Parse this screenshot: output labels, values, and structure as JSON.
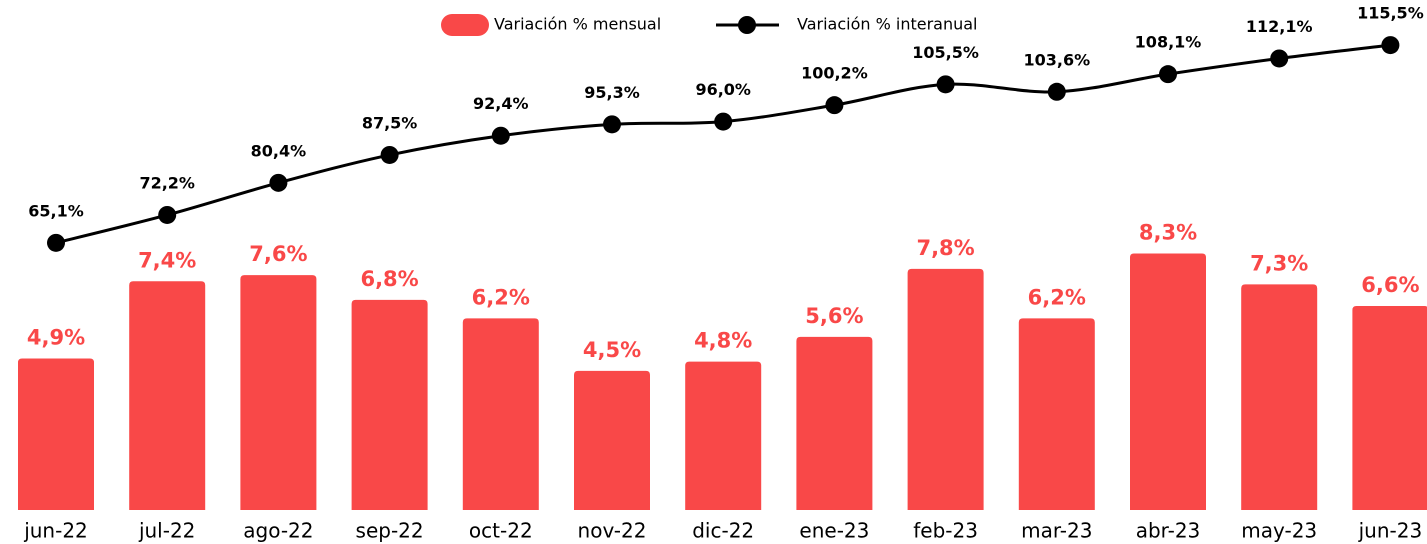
{
  "chart_data": {
    "type": "bar",
    "categories": [
      "jun-22",
      "jul-22",
      "ago-22",
      "sep-22",
      "oct-22",
      "nov-22",
      "dic-22",
      "ene-23",
      "feb-23",
      "mar-23",
      "abr-23",
      "may-23",
      "jun-23"
    ],
    "series": [
      {
        "name": "Variación % mensual",
        "color": "#f94848",
        "values": [
          4.9,
          7.4,
          7.6,
          6.8,
          6.2,
          4.5,
          4.8,
          5.6,
          7.8,
          6.2,
          8.3,
          7.3,
          6.6
        ],
        "value_labels": [
          "4,9%",
          "7,4%",
          "7,6%",
          "6,8%",
          "6,2%",
          "4,5%",
          "4,8%",
          "5,6%",
          "7,8%",
          "6,2%",
          "8,3%",
          "7,3%",
          "6,6%"
        ]
      },
      {
        "name": "Variación % interanual",
        "color": "#000000",
        "type": "line",
        "axis": "y2",
        "values": [
          65.1,
          72.2,
          80.4,
          87.5,
          92.4,
          95.3,
          96.0,
          100.2,
          105.5,
          103.6,
          108.1,
          112.1,
          115.5
        ],
        "value_labels": [
          "65,1%",
          "72,2%",
          "80,4%",
          "87,5%",
          "92,4%",
          "95,3%",
          "96,0%",
          "100,2%",
          "105,5%",
          "103,6%",
          "108,1%",
          "112,1%",
          "115,5%"
        ]
      }
    ],
    "ylim": [
      0,
      16.5
    ],
    "y2lim": [
      -3,
      127
    ]
  }
}
